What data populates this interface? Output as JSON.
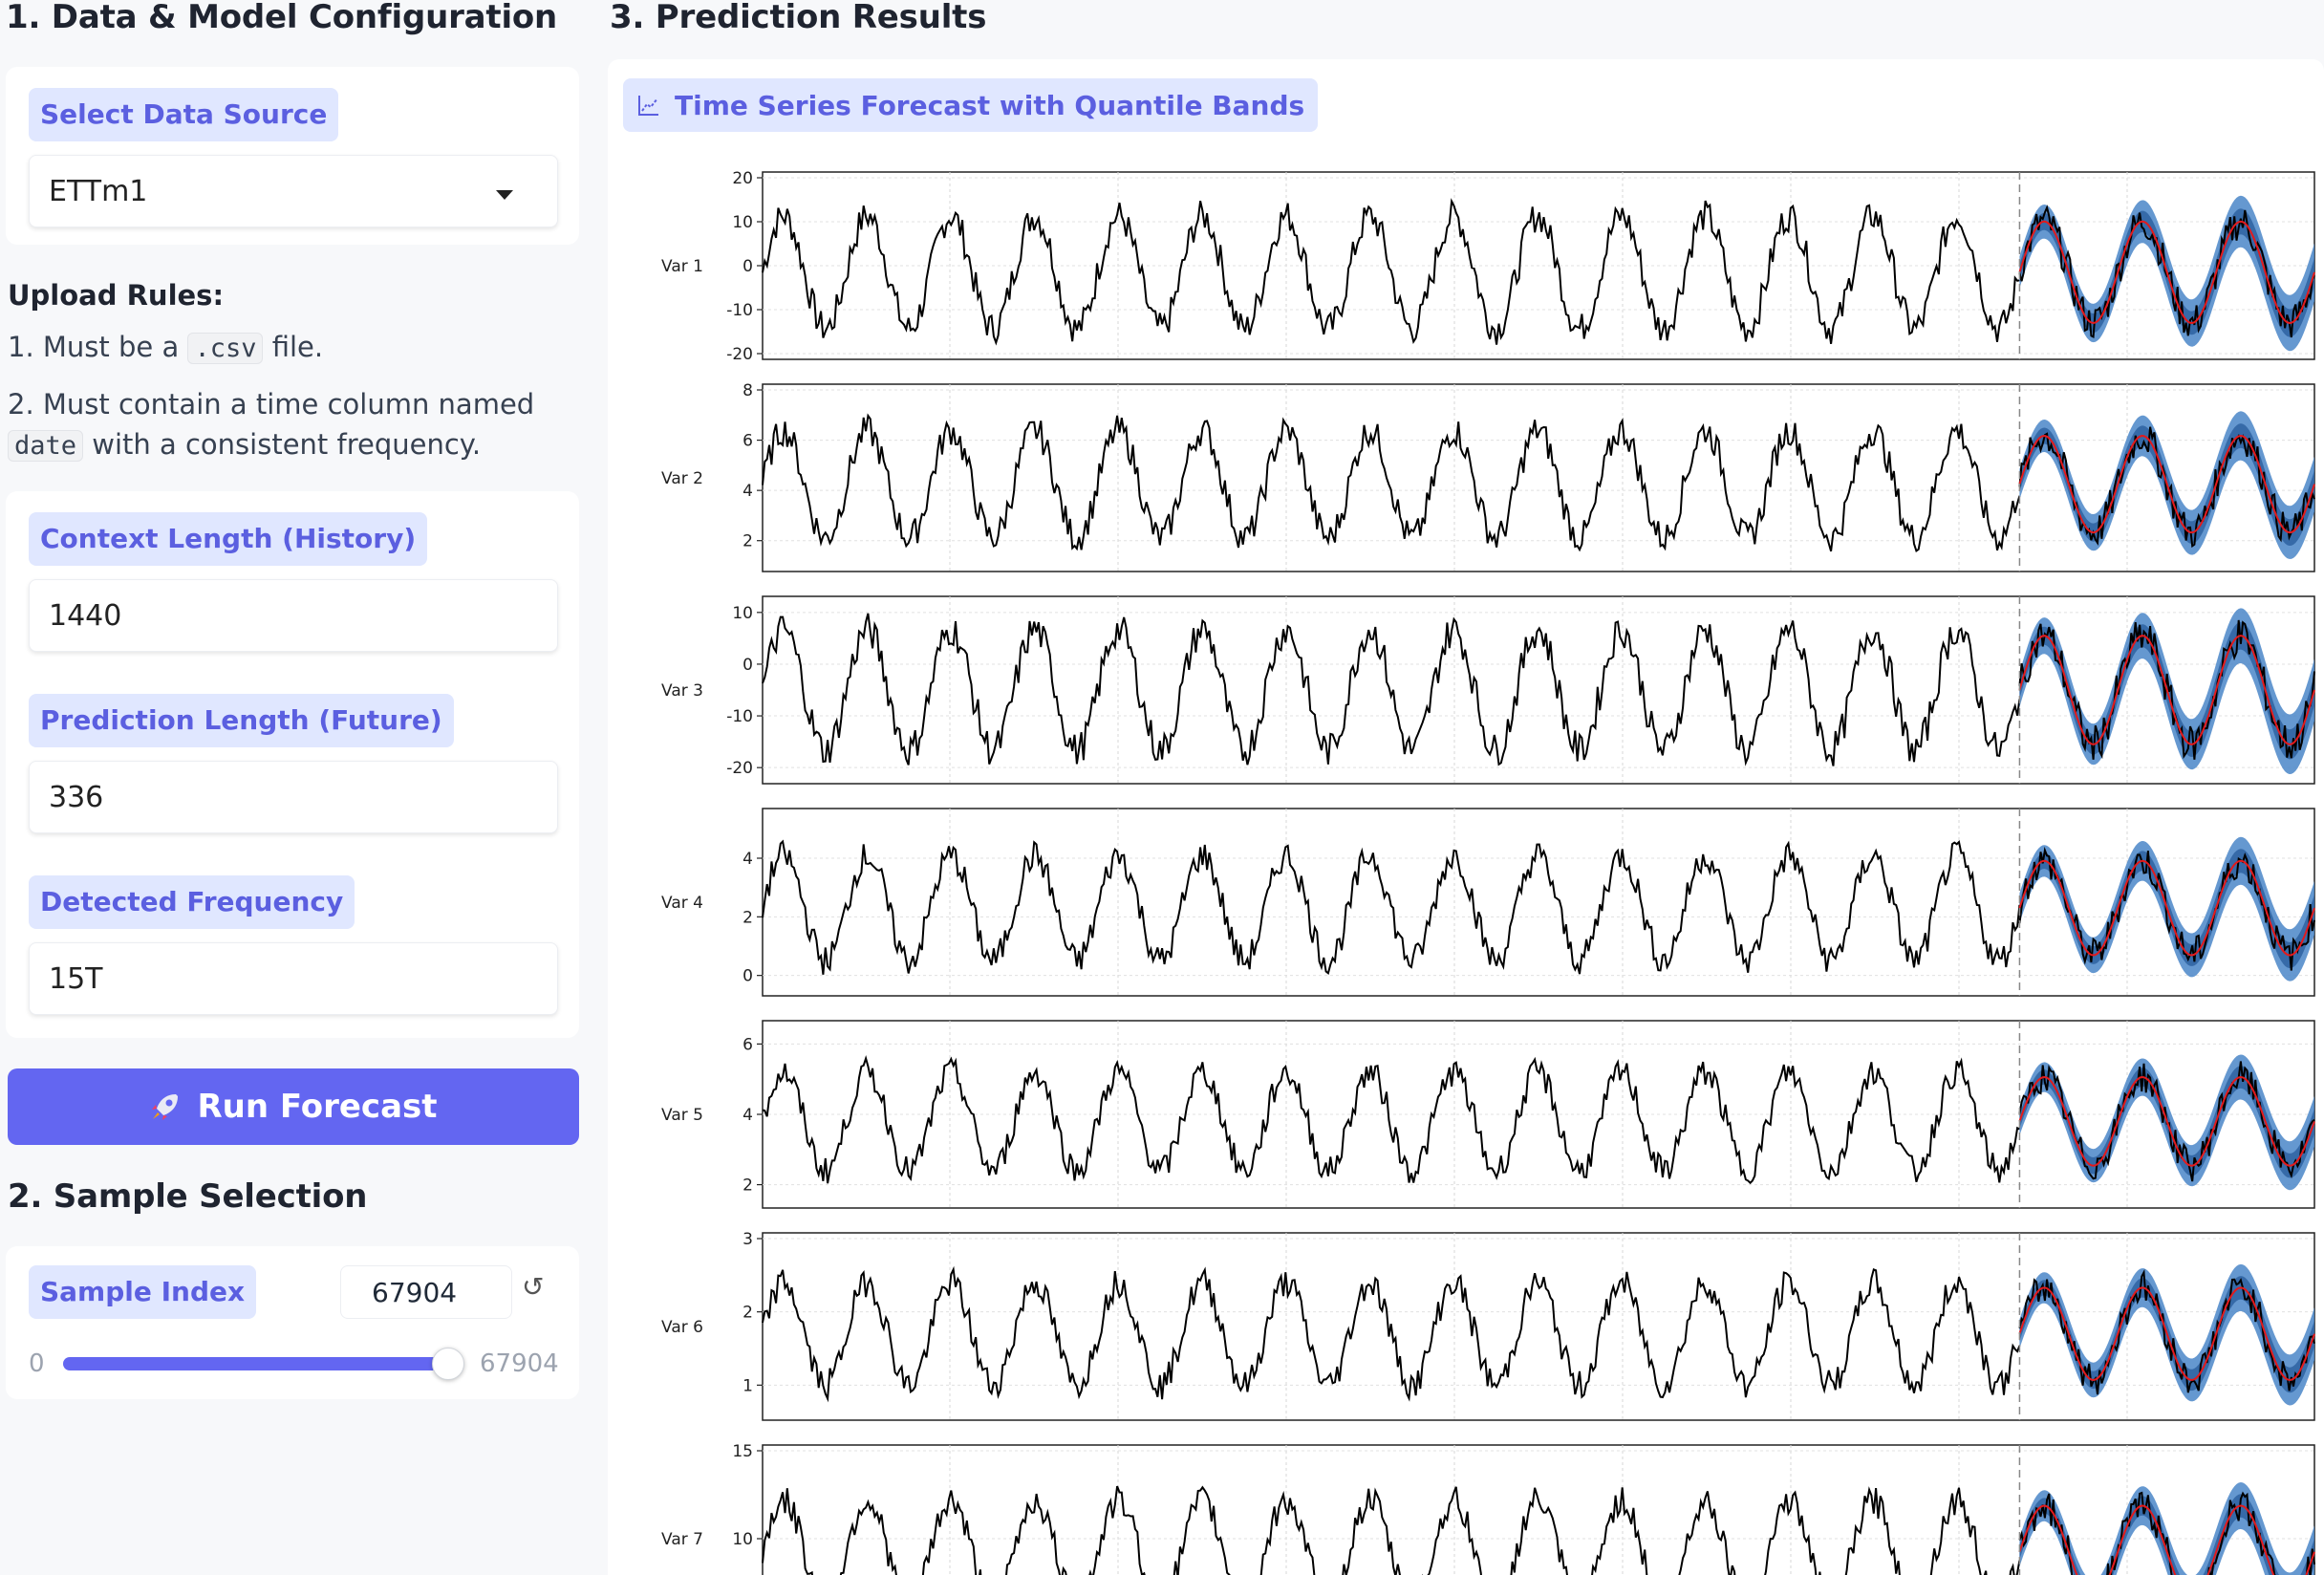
{
  "config": {
    "title": "1. Data & Model Configuration",
    "data_source": {
      "label": "Select Data Source",
      "value": "ETTm1"
    },
    "upload_rules": {
      "heading": "Upload Rules:",
      "rule1_pre": "1. Must be a",
      "rule1_code": ".csv",
      "rule1_post": "file.",
      "rule2_line1": "2. Must contain a time column named",
      "rule2_code": "date",
      "rule2_post": "with a consistent frequency."
    },
    "context_length": {
      "label": "Context Length (History)",
      "value": "1440"
    },
    "prediction_length": {
      "label": "Prediction Length (Future)",
      "value": "336"
    },
    "frequency": {
      "label": "Detected Frequency",
      "value": "15T"
    },
    "run_button": {
      "icon": "rocket-icon",
      "label": "Run Forecast"
    }
  },
  "sample": {
    "title": "2. Sample Selection",
    "label": "Sample Index",
    "value": "67904",
    "min": "0",
    "max": "67904",
    "fraction": 1.0
  },
  "results": {
    "title": "3. Prediction Results",
    "chart_chip": "Time Series Forecast with Quantile Bands"
  },
  "colors": {
    "accent": "#6366f1",
    "history_line": "#000000",
    "median_line": "#e31a1c",
    "band_outer": "#4a86c8",
    "band_inner": "#2a5f9e"
  },
  "chart_data": {
    "type": "line",
    "title": "",
    "grid": true,
    "forecast_start_fraction": 0.81,
    "variables": [
      {
        "name": "Var 1",
        "yticks": [
          20,
          10,
          0,
          -10,
          -20
        ],
        "ylim": [
          -20,
          20
        ],
        "low": -18,
        "high": 15
      },
      {
        "name": "Var 2",
        "yticks": [
          8,
          6,
          4,
          2
        ],
        "ylim": [
          1,
          8
        ],
        "low": 1.5,
        "high": 7
      },
      {
        "name": "Var 3",
        "yticks": [
          10,
          0,
          -10,
          -20
        ],
        "ylim": [
          -22,
          12
        ],
        "low": -20,
        "high": 10
      },
      {
        "name": "Var 4",
        "yticks": [
          4,
          2,
          0
        ],
        "ylim": [
          -0.5,
          5.5
        ],
        "low": 0,
        "high": 4.6
      },
      {
        "name": "Var 5",
        "yticks": [
          6,
          4,
          2
        ],
        "ylim": [
          1.5,
          6.5
        ],
        "low": 2,
        "high": 5.6
      },
      {
        "name": "Var 6",
        "yticks": [
          3,
          2,
          1
        ],
        "ylim": [
          0.6,
          3
        ],
        "low": 0.8,
        "high": 2.6
      },
      {
        "name": "Var 7",
        "yticks": [
          15,
          10
        ],
        "ylim": [
          5,
          15
        ],
        "low": 5.5,
        "high": 13
      }
    ]
  }
}
